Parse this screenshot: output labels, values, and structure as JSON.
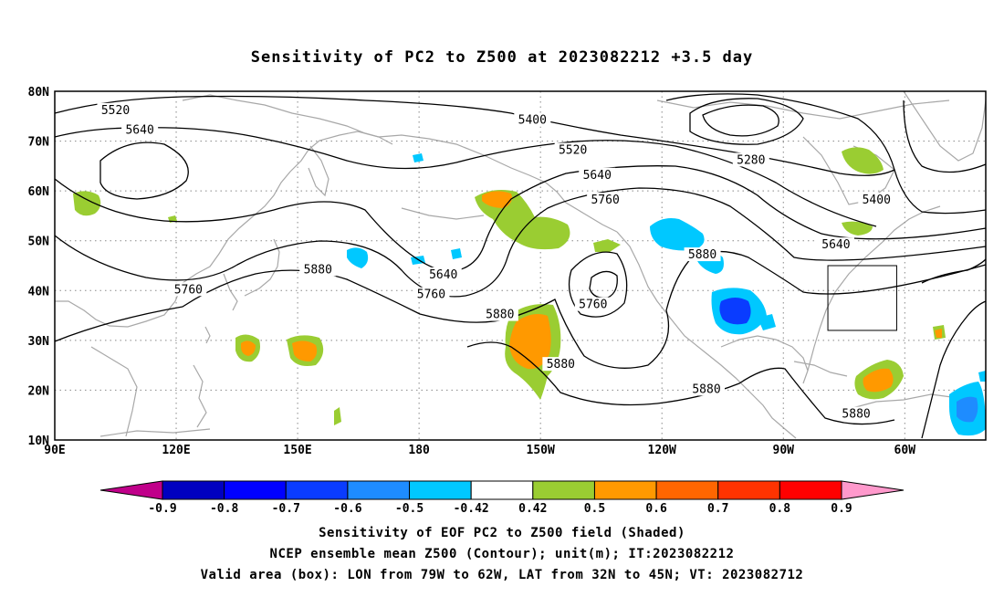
{
  "title": "Sensitivity of PC2 to Z500 at 2023082212 +3.5 day",
  "lat_labels": [
    "80N",
    "70N",
    "60N",
    "50N",
    "40N",
    "30N",
    "20N",
    "10N"
  ],
  "lon_labels": [
    "90E",
    "120E",
    "150E",
    "180",
    "150W",
    "120W",
    "90W",
    "60W"
  ],
  "contour_labels": [
    {
      "text": "5520",
      "lon": 105,
      "lat": 76
    },
    {
      "text": "5640",
      "lon": 111,
      "lat": 72
    },
    {
      "text": "5400",
      "lon": 208,
      "lat": 74
    },
    {
      "text": "5520",
      "lon": 218,
      "lat": 68
    },
    {
      "text": "5280",
      "lon": 262,
      "lat": 66
    },
    {
      "text": "5640",
      "lon": 224,
      "lat": 63
    },
    {
      "text": "5760",
      "lon": 226,
      "lat": 58
    },
    {
      "text": "5400",
      "lon": 293,
      "lat": 58
    },
    {
      "text": "5640",
      "lon": 283,
      "lat": 49
    },
    {
      "text": "5880",
      "lon": 250,
      "lat": 47
    },
    {
      "text": "5880",
      "lon": 155,
      "lat": 44
    },
    {
      "text": "5760",
      "lon": 123,
      "lat": 40
    },
    {
      "text": "5640",
      "lon": 186,
      "lat": 43
    },
    {
      "text": "5760",
      "lon": 183,
      "lat": 39
    },
    {
      "text": "5880",
      "lon": 200,
      "lat": 35
    },
    {
      "text": "5760",
      "lon": 223,
      "lat": 37
    },
    {
      "text": "5880",
      "lon": 215,
      "lat": 25
    },
    {
      "text": "5880",
      "lon": 251,
      "lat": 20
    },
    {
      "text": "5880",
      "lon": 288,
      "lat": 15
    }
  ],
  "colorbar": {
    "labels": [
      "-0.9",
      "-0.8",
      "-0.7",
      "-0.6",
      "-0.5",
      "-0.42",
      "0.42",
      "0.5",
      "0.6",
      "0.7",
      "0.8",
      "0.9"
    ],
    "colors": [
      "#c0008a",
      "#0000c0",
      "#0000ff",
      "#0a3cff",
      "#1e8cff",
      "#00c8ff",
      "#ffffff",
      "#9acd32",
      "#ff9900",
      "#ff6600",
      "#ff3300",
      "#ff0000",
      "#ff99cc"
    ]
  },
  "caption": [
    "Sensitivity of EOF PC2 to Z500 field (Shaded)",
    "NCEP ensemble mean Z500 (Contour); unit(m); IT:2023082212",
    "Valid area (box): LON from 79W to 62W, LAT from 32N to 45N; VT: 2023082712"
  ],
  "valid_box": {
    "lon_min": 281,
    "lon_max": 298,
    "lat_min": 32,
    "lat_max": 45
  },
  "map_extent": {
    "lon_min": 90,
    "lon_max": 320,
    "lat_min": 10,
    "lat_max": 80
  }
}
